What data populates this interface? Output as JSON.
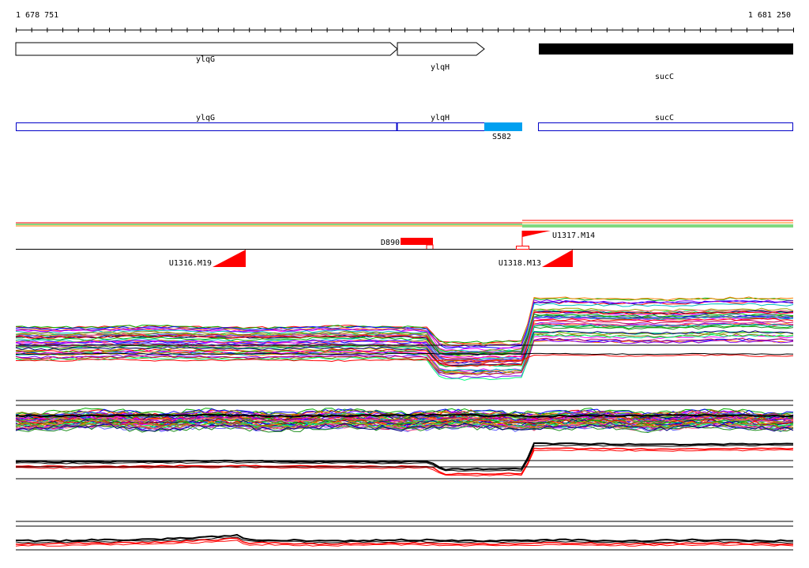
{
  "coordinates": {
    "start": "1 678 751",
    "end": "1 681 250"
  },
  "genes": [
    {
      "name": "ylqG",
      "strand": "+",
      "style": "outline"
    },
    {
      "name": "ylqH",
      "strand": "+",
      "style": "outline"
    },
    {
      "name": "sucC",
      "strand": "+",
      "style": "filled"
    }
  ],
  "annotation_track": {
    "color": "#0000c8",
    "features": [
      {
        "name": "ylqG",
        "type": "cds"
      },
      {
        "name": "ylqH",
        "type": "cds"
      },
      {
        "name": "S582",
        "type": "highlight",
        "color": "#00a0f0"
      },
      {
        "name": "sucC",
        "type": "cds"
      }
    ]
  },
  "promoter_markers": [
    {
      "name": "D890",
      "strand": "-",
      "color": "#ff0000"
    },
    {
      "name": "U1317.M14",
      "strand": "+",
      "color": "#ff0000"
    },
    {
      "name": "U1316.M19",
      "strand": "+",
      "color": "#ff0000"
    },
    {
      "name": "U1318.M13",
      "strand": "+",
      "color": "#ff0000"
    }
  ],
  "colors": {
    "highlight": "#00a0f0",
    "marker": "#ff0000",
    "annotation": "#0000c8",
    "trace_palette": [
      "#ff0000",
      "#00b000",
      "#0000ff",
      "#ff00ff",
      "#00c0c0",
      "#ff8000",
      "#8000ff",
      "#808000",
      "#00ff80",
      "#c00060",
      "#6060ff",
      "#a0a000",
      "#ff6090",
      "#209020",
      "#000080"
    ]
  }
}
